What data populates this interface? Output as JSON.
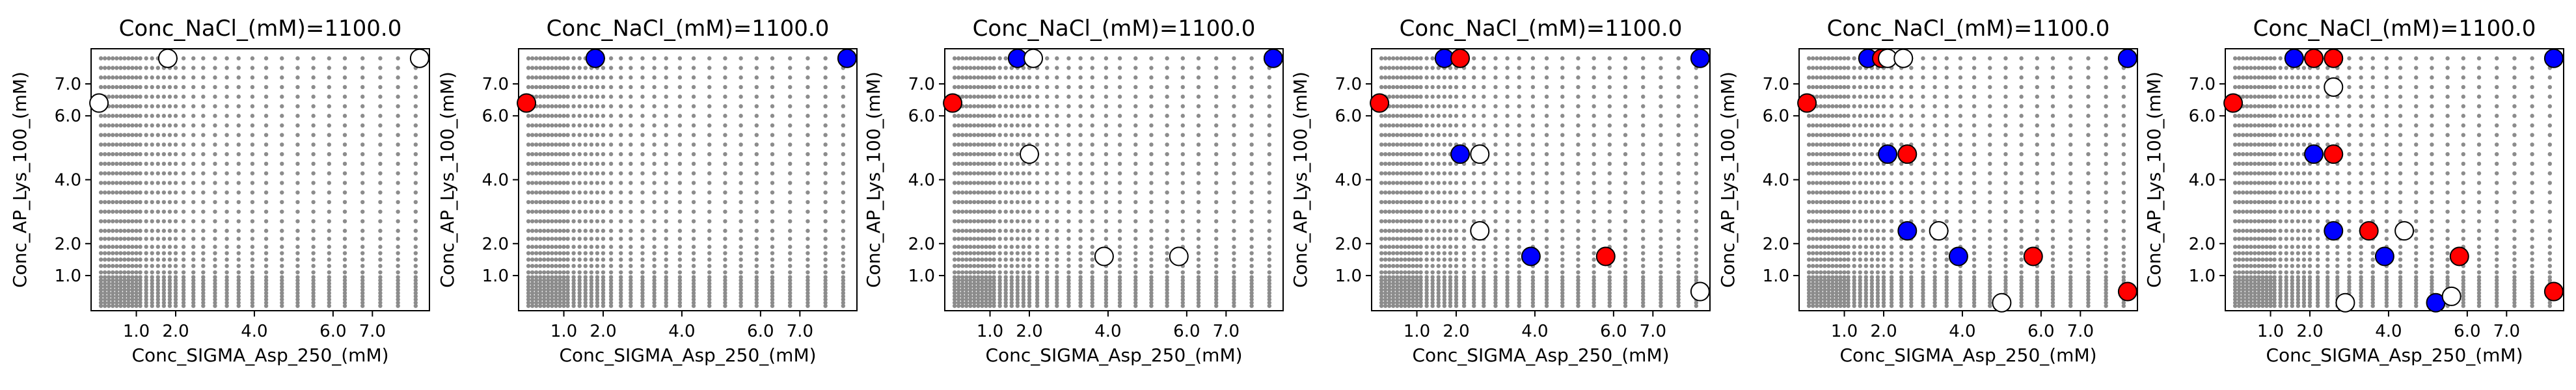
{
  "chart_data": [
    {
      "type": "scatter",
      "title": "Conc_NaCl_(mM)=1100.0",
      "xlabel": "Conc_SIGMA_Asp_250_(mM)",
      "ylabel": "Conc_AP_Lys_100_(mM)",
      "xticks": [
        1.0,
        2.0,
        4.0,
        6.0,
        7.0
      ],
      "xtick_labels": [
        "1.0",
        "2.0",
        "4.0",
        "6.0",
        "7.0"
      ],
      "yticks": [
        1.0,
        2.0,
        4.0,
        6.0,
        7.0
      ],
      "yticks_labels": [
        "1.0",
        "2.0",
        "4.0",
        "6.0",
        "7.0"
      ],
      "points": [
        {
          "x": 0.05,
          "y": 6.4,
          "color": "white"
        },
        {
          "x": 1.8,
          "y": 7.8,
          "color": "white"
        },
        {
          "x": 8.2,
          "y": 7.8,
          "color": "white"
        }
      ]
    },
    {
      "type": "scatter",
      "title": "Conc_NaCl_(mM)=1100.0",
      "xlabel": "Conc_SIGMA_Asp_250_(mM)",
      "ylabel": "Conc_AP_Lys_100_(mM)",
      "xticks": [
        1.0,
        2.0,
        4.0,
        6.0,
        7.0
      ],
      "xtick_labels": [
        "1.0",
        "2.0",
        "4.0",
        "6.0",
        "7.0"
      ],
      "yticks": [
        1.0,
        2.0,
        4.0,
        6.0,
        7.0
      ],
      "yticks_labels": [
        "1.0",
        "2.0",
        "4.0",
        "6.0",
        "7.0"
      ],
      "points": [
        {
          "x": 0.05,
          "y": 6.4,
          "color": "red"
        },
        {
          "x": 1.8,
          "y": 7.8,
          "color": "blue"
        },
        {
          "x": 8.2,
          "y": 7.8,
          "color": "blue"
        }
      ]
    },
    {
      "type": "scatter",
      "title": "Conc_NaCl_(mM)=1100.0",
      "xlabel": "Conc_SIGMA_Asp_250_(mM)",
      "ylabel": "Conc_AP_Lys_100_(mM)",
      "xticks": [
        1.0,
        2.0,
        4.0,
        6.0,
        7.0
      ],
      "xtick_labels": [
        "1.0",
        "2.0",
        "4.0",
        "6.0",
        "7.0"
      ],
      "yticks": [
        1.0,
        2.0,
        4.0,
        6.0,
        7.0
      ],
      "yticks_labels": [
        "1.0",
        "2.0",
        "4.0",
        "6.0",
        "7.0"
      ],
      "points": [
        {
          "x": 0.05,
          "y": 6.4,
          "color": "red"
        },
        {
          "x": 1.7,
          "y": 7.8,
          "color": "blue"
        },
        {
          "x": 2.1,
          "y": 7.8,
          "color": "white"
        },
        {
          "x": 8.2,
          "y": 7.8,
          "color": "blue"
        },
        {
          "x": 2.0,
          "y": 4.8,
          "color": "white"
        },
        {
          "x": 3.9,
          "y": 1.6,
          "color": "white"
        },
        {
          "x": 5.8,
          "y": 1.6,
          "color": "white"
        }
      ]
    },
    {
      "type": "scatter",
      "title": "Conc_NaCl_(mM)=1100.0",
      "xlabel": "Conc_SIGMA_Asp_250_(mM)",
      "ylabel": "Conc_AP_Lys_100_(mM)",
      "xticks": [
        1.0,
        2.0,
        4.0,
        6.0,
        7.0
      ],
      "xtick_labels": [
        "1.0",
        "2.0",
        "4.0",
        "6.0",
        "7.0"
      ],
      "yticks": [
        1.0,
        2.0,
        4.0,
        6.0,
        7.0
      ],
      "yticks_labels": [
        "1.0",
        "2.0",
        "4.0",
        "6.0",
        "7.0"
      ],
      "points": [
        {
          "x": 0.05,
          "y": 6.4,
          "color": "red"
        },
        {
          "x": 1.7,
          "y": 7.8,
          "color": "blue"
        },
        {
          "x": 2.1,
          "y": 7.8,
          "color": "red"
        },
        {
          "x": 8.2,
          "y": 7.8,
          "color": "blue"
        },
        {
          "x": 2.1,
          "y": 4.8,
          "color": "blue"
        },
        {
          "x": 2.6,
          "y": 4.8,
          "color": "white"
        },
        {
          "x": 2.6,
          "y": 2.4,
          "color": "white"
        },
        {
          "x": 3.9,
          "y": 1.6,
          "color": "blue"
        },
        {
          "x": 5.8,
          "y": 1.6,
          "color": "red"
        },
        {
          "x": 8.2,
          "y": 0.5,
          "color": "white"
        }
      ]
    },
    {
      "type": "scatter",
      "title": "Conc_NaCl_(mM)=1100.0",
      "xlabel": "Conc_SIGMA_Asp_250_(mM)",
      "ylabel": "Conc_AP_Lys_100_(mM)",
      "xticks": [
        1.0,
        2.0,
        4.0,
        6.0,
        7.0
      ],
      "xtick_labels": [
        "1.0",
        "2.0",
        "4.0",
        "6.0",
        "7.0"
      ],
      "yticks": [
        1.0,
        2.0,
        4.0,
        6.0,
        7.0
      ],
      "yticks_labels": [
        "1.0",
        "2.0",
        "4.0",
        "6.0",
        "7.0"
      ],
      "points": [
        {
          "x": 0.05,
          "y": 6.4,
          "color": "red"
        },
        {
          "x": 1.6,
          "y": 7.8,
          "color": "blue"
        },
        {
          "x": 1.95,
          "y": 7.8,
          "color": "red"
        },
        {
          "x": 2.1,
          "y": 7.8,
          "color": "white"
        },
        {
          "x": 2.5,
          "y": 7.8,
          "color": "white"
        },
        {
          "x": 8.2,
          "y": 7.8,
          "color": "blue"
        },
        {
          "x": 2.1,
          "y": 4.8,
          "color": "blue"
        },
        {
          "x": 2.6,
          "y": 4.8,
          "color": "red"
        },
        {
          "x": 2.6,
          "y": 2.4,
          "color": "blue"
        },
        {
          "x": 3.4,
          "y": 2.4,
          "color": "white"
        },
        {
          "x": 3.9,
          "y": 1.6,
          "color": "blue"
        },
        {
          "x": 5.8,
          "y": 1.6,
          "color": "red"
        },
        {
          "x": 5.0,
          "y": 0.15,
          "color": "white"
        },
        {
          "x": 8.2,
          "y": 0.5,
          "color": "red"
        }
      ]
    },
    {
      "type": "scatter",
      "title": "Conc_NaCl_(mM)=1100.0",
      "xlabel": "Conc_SIGMA_Asp_250_(mM)",
      "ylabel": "Conc_AP_Lys_100_(mM)",
      "xticks": [
        1.0,
        2.0,
        4.0,
        6.0,
        7.0
      ],
      "xtick_labels": [
        "1.0",
        "2.0",
        "4.0",
        "6.0",
        "7.0"
      ],
      "yticks": [
        1.0,
        2.0,
        4.0,
        6.0,
        7.0
      ],
      "yticks_labels": [
        "1.0",
        "2.0",
        "4.0",
        "6.0",
        "7.0"
      ],
      "points": [
        {
          "x": 0.05,
          "y": 6.4,
          "color": "red"
        },
        {
          "x": 1.6,
          "y": 7.8,
          "color": "blue"
        },
        {
          "x": 2.1,
          "y": 7.8,
          "color": "red"
        },
        {
          "x": 2.6,
          "y": 7.8,
          "color": "red"
        },
        {
          "x": 8.2,
          "y": 7.8,
          "color": "blue"
        },
        {
          "x": 2.6,
          "y": 6.9,
          "color": "white"
        },
        {
          "x": 2.1,
          "y": 4.8,
          "color": "blue"
        },
        {
          "x": 2.6,
          "y": 4.8,
          "color": "red"
        },
        {
          "x": 2.6,
          "y": 2.4,
          "color": "blue"
        },
        {
          "x": 3.5,
          "y": 2.4,
          "color": "red"
        },
        {
          "x": 4.4,
          "y": 2.4,
          "color": "white"
        },
        {
          "x": 3.9,
          "y": 1.6,
          "color": "blue"
        },
        {
          "x": 5.8,
          "y": 1.6,
          "color": "red"
        },
        {
          "x": 2.9,
          "y": 0.15,
          "color": "white"
        },
        {
          "x": 5.2,
          "y": 0.15,
          "color": "blue"
        },
        {
          "x": 5.6,
          "y": 0.35,
          "color": "white"
        },
        {
          "x": 8.2,
          "y": 0.5,
          "color": "red"
        }
      ]
    }
  ],
  "colors": {
    "red": "#ff0000",
    "blue": "#0000ff",
    "white": "#ffffff",
    "grid_points": "#8c8c8c",
    "edge": "#000000"
  }
}
